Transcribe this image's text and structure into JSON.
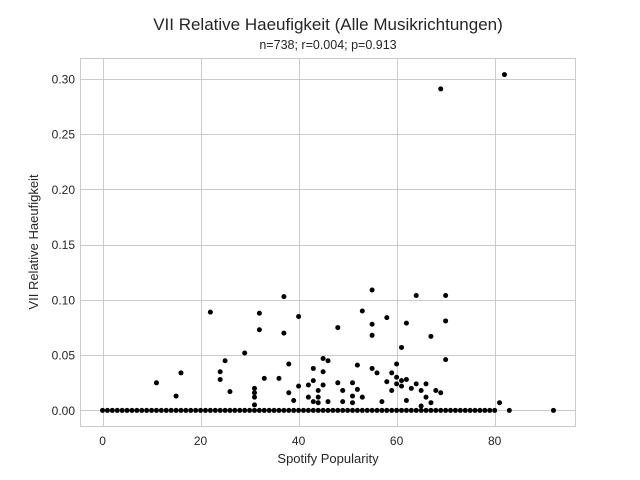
{
  "chart_data": {
    "type": "scatter",
    "title": "VII Relative Haeufigkeit (Alle Musikrichtungen)",
    "subtitle": "n=738; r=0.004; p=0.913",
    "xlabel": "Spotify Popularity",
    "ylabel": "VII Relative Haeufigkeit",
    "xlim": [
      -4.6,
      96.6
    ],
    "ylim": [
      -0.015,
      0.319
    ],
    "xticks": [
      0,
      20,
      40,
      60,
      80
    ],
    "xtick_labels": [
      "0",
      "20",
      "40",
      "60",
      "80"
    ],
    "yticks": [
      0.0,
      0.05,
      0.1,
      0.15,
      0.2,
      0.25,
      0.3
    ],
    "ytick_labels": [
      "0.00",
      "0.05",
      "0.10",
      "0.15",
      "0.20",
      "0.25",
      "0.30"
    ],
    "grid": true,
    "marker_color": "#000000",
    "background": "#ffffff",
    "grid_color": "#cccccc",
    "points": [
      {
        "x": 0,
        "y": 0
      },
      {
        "x": 1,
        "y": 0
      },
      {
        "x": 2,
        "y": 0
      },
      {
        "x": 3,
        "y": 0
      },
      {
        "x": 4,
        "y": 0
      },
      {
        "x": 5,
        "y": 0
      },
      {
        "x": 6,
        "y": 0
      },
      {
        "x": 7,
        "y": 0
      },
      {
        "x": 8,
        "y": 0
      },
      {
        "x": 9,
        "y": 0
      },
      {
        "x": 10,
        "y": 0
      },
      {
        "x": 11,
        "y": 0
      },
      {
        "x": 12,
        "y": 0
      },
      {
        "x": 13,
        "y": 0
      },
      {
        "x": 14,
        "y": 0
      },
      {
        "x": 15,
        "y": 0
      },
      {
        "x": 16,
        "y": 0
      },
      {
        "x": 17,
        "y": 0
      },
      {
        "x": 18,
        "y": 0
      },
      {
        "x": 19,
        "y": 0
      },
      {
        "x": 20,
        "y": 0
      },
      {
        "x": 21,
        "y": 0
      },
      {
        "x": 22,
        "y": 0
      },
      {
        "x": 23,
        "y": 0
      },
      {
        "x": 24,
        "y": 0
      },
      {
        "x": 25,
        "y": 0
      },
      {
        "x": 26,
        "y": 0
      },
      {
        "x": 27,
        "y": 0
      },
      {
        "x": 28,
        "y": 0
      },
      {
        "x": 29,
        "y": 0
      },
      {
        "x": 30,
        "y": 0
      },
      {
        "x": 31,
        "y": 0
      },
      {
        "x": 32,
        "y": 0
      },
      {
        "x": 33,
        "y": 0
      },
      {
        "x": 34,
        "y": 0
      },
      {
        "x": 35,
        "y": 0
      },
      {
        "x": 36,
        "y": 0
      },
      {
        "x": 37,
        "y": 0
      },
      {
        "x": 38,
        "y": 0
      },
      {
        "x": 39,
        "y": 0
      },
      {
        "x": 40,
        "y": 0
      },
      {
        "x": 41,
        "y": 0
      },
      {
        "x": 42,
        "y": 0
      },
      {
        "x": 43,
        "y": 0
      },
      {
        "x": 44,
        "y": 0
      },
      {
        "x": 45,
        "y": 0
      },
      {
        "x": 46,
        "y": 0
      },
      {
        "x": 47,
        "y": 0
      },
      {
        "x": 48,
        "y": 0
      },
      {
        "x": 49,
        "y": 0
      },
      {
        "x": 50,
        "y": 0
      },
      {
        "x": 51,
        "y": 0
      },
      {
        "x": 52,
        "y": 0
      },
      {
        "x": 53,
        "y": 0
      },
      {
        "x": 54,
        "y": 0
      },
      {
        "x": 55,
        "y": 0
      },
      {
        "x": 56,
        "y": 0
      },
      {
        "x": 57,
        "y": 0
      },
      {
        "x": 58,
        "y": 0
      },
      {
        "x": 59,
        "y": 0
      },
      {
        "x": 60,
        "y": 0
      },
      {
        "x": 61,
        "y": 0
      },
      {
        "x": 62,
        "y": 0
      },
      {
        "x": 63,
        "y": 0
      },
      {
        "x": 64,
        "y": 0
      },
      {
        "x": 65,
        "y": 0
      },
      {
        "x": 66,
        "y": 0
      },
      {
        "x": 67,
        "y": 0
      },
      {
        "x": 68,
        "y": 0
      },
      {
        "x": 69,
        "y": 0
      },
      {
        "x": 70,
        "y": 0
      },
      {
        "x": 71,
        "y": 0
      },
      {
        "x": 72,
        "y": 0
      },
      {
        "x": 73,
        "y": 0
      },
      {
        "x": 74,
        "y": 0
      },
      {
        "x": 75,
        "y": 0
      },
      {
        "x": 76,
        "y": 0
      },
      {
        "x": 77,
        "y": 0
      },
      {
        "x": 78,
        "y": 0
      },
      {
        "x": 79,
        "y": 0
      },
      {
        "x": 80,
        "y": 0
      },
      {
        "x": 83,
        "y": 0
      },
      {
        "x": 92,
        "y": 0
      },
      {
        "x": 11,
        "y": 0.025
      },
      {
        "x": 15,
        "y": 0.013
      },
      {
        "x": 16,
        "y": 0.034
      },
      {
        "x": 22,
        "y": 0.089
      },
      {
        "x": 24,
        "y": 0.035
      },
      {
        "x": 24,
        "y": 0.028
      },
      {
        "x": 25,
        "y": 0.045
      },
      {
        "x": 26,
        "y": 0.017
      },
      {
        "x": 29,
        "y": 0.052
      },
      {
        "x": 31,
        "y": 0.02
      },
      {
        "x": 31,
        "y": 0.016
      },
      {
        "x": 31,
        "y": 0.012
      },
      {
        "x": 31,
        "y": 0.005
      },
      {
        "x": 32,
        "y": 0.088
      },
      {
        "x": 32,
        "y": 0.073
      },
      {
        "x": 33,
        "y": 0.029
      },
      {
        "x": 36,
        "y": 0.029
      },
      {
        "x": 37,
        "y": 0.103
      },
      {
        "x": 37,
        "y": 0.07
      },
      {
        "x": 38,
        "y": 0.042
      },
      {
        "x": 38,
        "y": 0.016
      },
      {
        "x": 39,
        "y": 0.009
      },
      {
        "x": 40,
        "y": 0.085
      },
      {
        "x": 40,
        "y": 0.022
      },
      {
        "x": 42,
        "y": 0.023
      },
      {
        "x": 42,
        "y": 0.012
      },
      {
        "x": 43,
        "y": 0.038
      },
      {
        "x": 43,
        "y": 0.027
      },
      {
        "x": 43,
        "y": 0.008
      },
      {
        "x": 44,
        "y": 0.018
      },
      {
        "x": 44,
        "y": 0.012
      },
      {
        "x": 44,
        "y": 0.007
      },
      {
        "x": 45,
        "y": 0.047
      },
      {
        "x": 45,
        "y": 0.035
      },
      {
        "x": 45,
        "y": 0.023
      },
      {
        "x": 46,
        "y": 0.045
      },
      {
        "x": 46,
        "y": 0.008
      },
      {
        "x": 48,
        "y": 0.075
      },
      {
        "x": 48,
        "y": 0.025
      },
      {
        "x": 49,
        "y": 0.018
      },
      {
        "x": 49,
        "y": 0.008
      },
      {
        "x": 51,
        "y": 0.025
      },
      {
        "x": 51,
        "y": 0.013
      },
      {
        "x": 51,
        "y": 0.007
      },
      {
        "x": 52,
        "y": 0.041
      },
      {
        "x": 52,
        "y": 0.019
      },
      {
        "x": 53,
        "y": 0.09
      },
      {
        "x": 53,
        "y": 0.012
      },
      {
        "x": 55,
        "y": 0.109
      },
      {
        "x": 55,
        "y": 0.078
      },
      {
        "x": 55,
        "y": 0.068
      },
      {
        "x": 55,
        "y": 0.038
      },
      {
        "x": 56,
        "y": 0.034
      },
      {
        "x": 57,
        "y": 0.008
      },
      {
        "x": 58,
        "y": 0.084
      },
      {
        "x": 58,
        "y": 0.026
      },
      {
        "x": 59,
        "y": 0.034
      },
      {
        "x": 59,
        "y": 0.018
      },
      {
        "x": 60,
        "y": 0.042
      },
      {
        "x": 60,
        "y": 0.03
      },
      {
        "x": 60,
        "y": 0.024
      },
      {
        "x": 61,
        "y": 0.057
      },
      {
        "x": 61,
        "y": 0.027
      },
      {
        "x": 61,
        "y": 0.022
      },
      {
        "x": 62,
        "y": 0.079
      },
      {
        "x": 62,
        "y": 0.028
      },
      {
        "x": 62,
        "y": 0.009
      },
      {
        "x": 63,
        "y": 0.02
      },
      {
        "x": 64,
        "y": 0.104
      },
      {
        "x": 64,
        "y": 0.024
      },
      {
        "x": 65,
        "y": 0.018
      },
      {
        "x": 65,
        "y": 0.004
      },
      {
        "x": 66,
        "y": 0.024
      },
      {
        "x": 66,
        "y": 0.012
      },
      {
        "x": 67,
        "y": 0.067
      },
      {
        "x": 67,
        "y": 0.007
      },
      {
        "x": 68,
        "y": 0.018
      },
      {
        "x": 69,
        "y": 0.291
      },
      {
        "x": 69,
        "y": 0.016
      },
      {
        "x": 70,
        "y": 0.104
      },
      {
        "x": 70,
        "y": 0.081
      },
      {
        "x": 70,
        "y": 0.046
      },
      {
        "x": 81,
        "y": 0.007
      },
      {
        "x": 82,
        "y": 0.304
      }
    ]
  }
}
